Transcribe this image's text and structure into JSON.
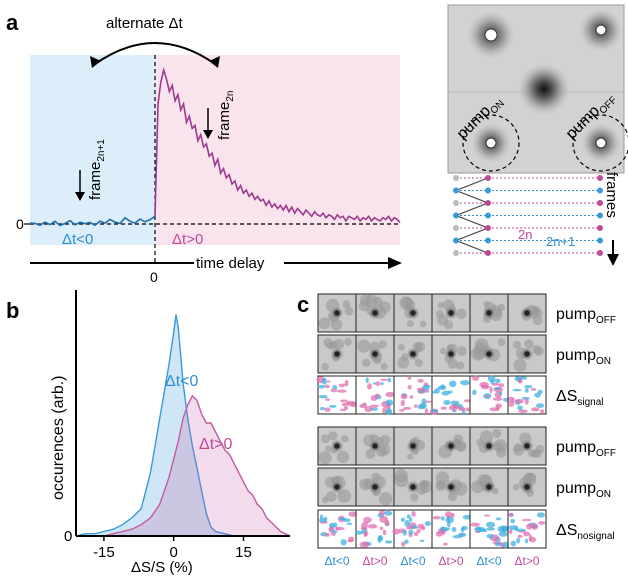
{
  "panel_a": {
    "panel_letter": "a",
    "alternate_label": "alternate Δt",
    "frame_2n_plus_1": {
      "base": "frame",
      "sub": "2n+1"
    },
    "frame_2n": {
      "base": "frame",
      "sub": "2n"
    },
    "dt_neg": "Δt<0",
    "dt_pos": "Δt>0",
    "y_tick_zero": "0",
    "x_tick_zero": "0",
    "x_axis_label": "time delay",
    "trace_neg": [
      0.006,
      0.004,
      -0.008,
      0.012,
      -0.004,
      0.018,
      -0.01,
      0.004,
      0.022,
      -0.006,
      0.012,
      0.002,
      0.01,
      -0.008,
      0.018,
      0.006,
      0.03,
      0.012,
      0.004,
      0.04,
      0.018,
      0.006,
      0.032,
      0.014,
      0.028,
      0.05
    ],
    "trace_pos_peak": 1.0,
    "trace_pos": [
      0.78,
      0.92,
      1.0,
      0.94,
      0.86,
      0.9,
      0.8,
      0.84,
      0.74,
      0.78,
      0.66,
      0.7,
      0.62,
      0.64,
      0.54,
      0.58,
      0.5,
      0.52,
      0.44,
      0.46,
      0.38,
      0.42,
      0.33,
      0.36,
      0.3,
      0.32,
      0.26,
      0.28,
      0.22,
      0.25,
      0.2,
      0.22,
      0.18,
      0.2,
      0.16,
      0.18,
      0.15,
      0.16,
      0.12,
      0.15,
      0.11,
      0.13,
      0.1,
      0.12,
      0.09,
      0.12,
      0.08,
      0.11,
      0.07,
      0.1,
      0.08,
      0.06,
      0.09,
      0.07,
      0.05,
      0.08,
      0.06,
      0.05,
      0.07,
      0.04,
      0.06,
      0.05,
      0.03,
      0.06,
      0.04,
      0.05,
      0.02,
      0.05,
      0.04,
      0.03,
      0.05,
      0.02,
      0.04,
      0.03,
      0.05,
      0.02,
      0.04,
      0.03,
      0.02,
      0.04,
      0.03,
      0.05,
      0.02,
      0.04,
      0.03,
      0.01
    ],
    "pump_on": {
      "base": "pump",
      "sub": "ON"
    },
    "pump_off": {
      "base": "pump",
      "sub": "OFF"
    },
    "frames_label": "frames",
    "seq_2n": "2n",
    "seq_2n_plus_1": "2n+1"
  },
  "panel_b": {
    "panel_letter": "b",
    "chart_data": {
      "type": "area",
      "xlabel": "ΔS/S (%)",
      "ylabel": "occurences (arb.)",
      "x_ticks": [
        "-15",
        "0",
        "15"
      ],
      "y_ticks": [
        "0"
      ],
      "xlim": [
        -21,
        25
      ],
      "series": [
        {
          "name": "Δt<0",
          "color": "#3a9ad9",
          "x": [
            -21,
            -19,
            -17,
            -15,
            -13,
            -11,
            -9,
            -7,
            -6,
            -5,
            -4,
            -3,
            -2,
            -1,
            0,
            0.5,
            1,
            1.5,
            2,
            3,
            4,
            5,
            6,
            7,
            8,
            9,
            11,
            13,
            15
          ],
          "y": [
            0.0,
            0.01,
            0.01,
            0.02,
            0.03,
            0.05,
            0.08,
            0.12,
            0.2,
            0.28,
            0.4,
            0.52,
            0.64,
            0.76,
            0.9,
            0.98,
            0.92,
            0.8,
            0.68,
            0.52,
            0.4,
            0.3,
            0.2,
            0.1,
            0.04,
            0.02,
            0.01,
            0.0,
            0.0
          ]
        },
        {
          "name": "Δt>0",
          "color": "#c25aa4",
          "x": [
            -15,
            -13,
            -11,
            -9,
            -7,
            -5,
            -3,
            -1,
            0,
            1,
            2,
            3,
            4,
            5,
            6,
            7,
            8,
            9,
            10,
            11,
            12,
            13,
            14,
            15,
            16,
            17,
            18,
            19,
            20,
            21,
            22,
            23,
            24,
            25
          ],
          "y": [
            0.0,
            0.01,
            0.02,
            0.03,
            0.05,
            0.08,
            0.14,
            0.26,
            0.34,
            0.42,
            0.52,
            0.58,
            0.62,
            0.6,
            0.54,
            0.5,
            0.5,
            0.46,
            0.42,
            0.38,
            0.36,
            0.32,
            0.28,
            0.24,
            0.2,
            0.18,
            0.14,
            0.12,
            0.08,
            0.06,
            0.04,
            0.02,
            0.01,
            0.0
          ]
        }
      ]
    }
  },
  "panel_c": {
    "panel_letter": "c",
    "row_labels": [
      {
        "base": "pump",
        "sub": "OFF"
      },
      {
        "base": "pump",
        "sub": "ON"
      },
      {
        "base": "ΔS",
        "sub": "signal"
      },
      {
        "base": "pump",
        "sub": "OFF"
      },
      {
        "base": "pump",
        "sub": "ON"
      },
      {
        "base": "ΔS",
        "sub": "nosignal"
      }
    ],
    "col_labels": [
      "Δt<0",
      "Δt>0",
      "Δt<0",
      "Δt>0",
      "Δt<0",
      "Δt>0"
    ]
  },
  "colors": {
    "blue": "#2f8fd0",
    "magenta": "#c04a9a",
    "blue_bg": "#dbeef9",
    "pink_bg": "#f9e4ee",
    "purple_trace": "#9b3c8f"
  }
}
